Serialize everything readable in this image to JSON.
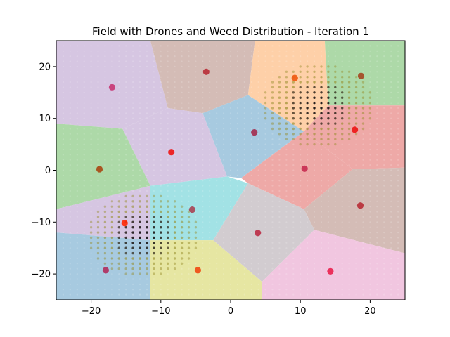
{
  "chart_data": {
    "type": "scatter",
    "title": "Field with Drones and Weed Distribution - Iteration 1",
    "xlabel": "",
    "ylabel": "",
    "xlim": [
      -25,
      25
    ],
    "ylim": [
      -25,
      25
    ],
    "xticks": [
      -20,
      -10,
      0,
      10,
      20
    ],
    "yticks": [
      -20,
      -10,
      0,
      10,
      20
    ],
    "xtick_labels": [
      "−20",
      "−10",
      "0",
      "10",
      "20"
    ],
    "ytick_labels": [
      "−20",
      "−10",
      "0",
      "10",
      "20"
    ],
    "grid": false,
    "legend": "none",
    "drones": [
      {
        "x": -17.0,
        "y": 16.0,
        "color": "#c83a76"
      },
      {
        "x": -3.5,
        "y": 19.0,
        "color": "#b8303a"
      },
      {
        "x": 9.2,
        "y": 17.8,
        "color": "#f05a12"
      },
      {
        "x": 18.7,
        "y": 18.2,
        "color": "#a44a24"
      },
      {
        "x": 3.4,
        "y": 7.3,
        "color": "#a43050"
      },
      {
        "x": 17.8,
        "y": 7.8,
        "color": "#ee1818"
      },
      {
        "x": -8.5,
        "y": 3.5,
        "color": "#ee1818"
      },
      {
        "x": -18.8,
        "y": 0.2,
        "color": "#a84a16"
      },
      {
        "x": 10.6,
        "y": 0.3,
        "color": "#c82f52"
      },
      {
        "x": -5.5,
        "y": -7.6,
        "color": "#a84858"
      },
      {
        "x": 18.6,
        "y": -6.8,
        "color": "#b8303a"
      },
      {
        "x": -15.2,
        "y": -10.2,
        "color": "#ff2a08"
      },
      {
        "x": 3.9,
        "y": -12.1,
        "color": "#bc3048"
      },
      {
        "x": -17.9,
        "y": -19.3,
        "color": "#b03060"
      },
      {
        "x": -4.7,
        "y": -19.3,
        "color": "#f04c14"
      },
      {
        "x": 14.3,
        "y": -19.5,
        "color": "#ea2450"
      }
    ],
    "region_colors": [
      "#d6c6e2",
      "#d4bcb6",
      "#fed0a8",
      "#add9a8",
      "#a7cae0",
      "#eea9a7",
      "#d6c6e2",
      "#add9a8",
      "#eea9a7",
      "#d6c6e2",
      "#a2e2e5",
      "#d4bcb6",
      "#fed0a8",
      "#d2ccd0",
      "#a7cae0",
      "#e6e6a2",
      "#f1c6e0"
    ],
    "weed_clusters": [
      {
        "x": 12.5,
        "y": 12.5,
        "spread": 4.0
      },
      {
        "x": -12.5,
        "y": -12.5,
        "spread": 4.0
      }
    ]
  }
}
